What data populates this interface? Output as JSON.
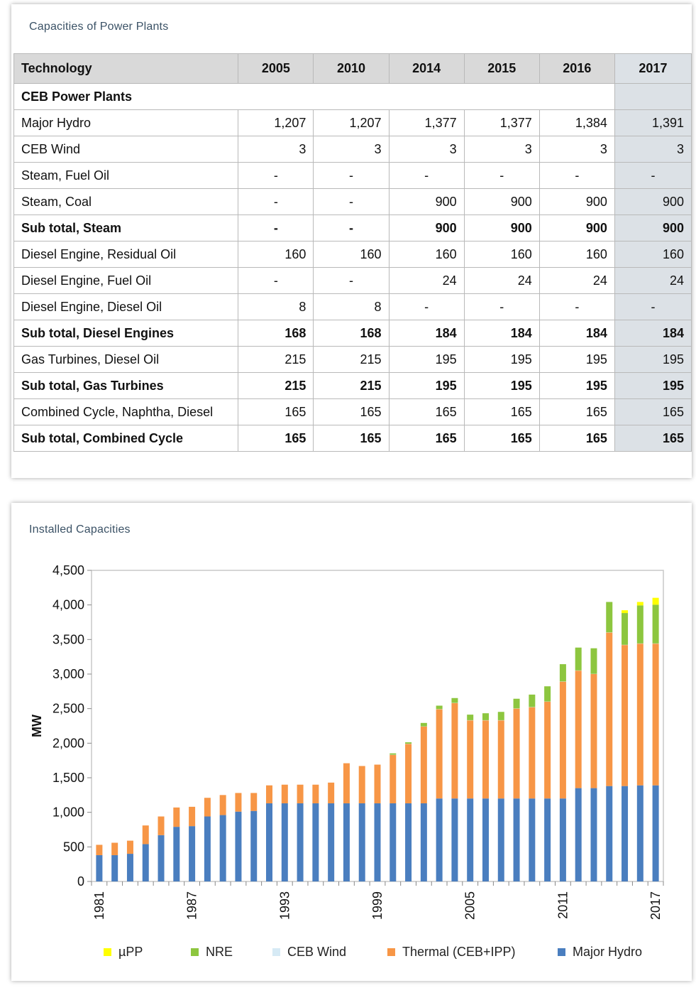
{
  "table_card": {
    "title": "Capacities of Power Plants",
    "headers": [
      "Technology",
      "2005",
      "2010",
      "2014",
      "2015",
      "2016",
      "2017"
    ],
    "group_label": "CEB Power Plants",
    "rows": [
      {
        "name": "Major Hydro",
        "bold": false,
        "values": [
          "1,207",
          "1,207",
          "1,377",
          "1,377",
          "1,384",
          "1,391"
        ]
      },
      {
        "name": "CEB Wind",
        "bold": false,
        "values": [
          "3",
          "3",
          "3",
          "3",
          "3",
          "3"
        ]
      },
      {
        "name": "Steam, Fuel Oil",
        "bold": false,
        "values": [
          "-",
          "-",
          "-",
          "-",
          "-",
          "-"
        ]
      },
      {
        "name": "Steam, Coal",
        "bold": false,
        "values": [
          "-",
          "-",
          "900",
          "900",
          "900",
          "900"
        ]
      },
      {
        "name": "Sub total, Steam",
        "bold": true,
        "values": [
          "-",
          "-",
          "900",
          "900",
          "900",
          "900"
        ]
      },
      {
        "name": "Diesel Engine, Residual Oil",
        "bold": false,
        "values": [
          "160",
          "160",
          "160",
          "160",
          "160",
          "160"
        ]
      },
      {
        "name": "Diesel Engine, Fuel Oil",
        "bold": false,
        "values": [
          "-",
          "-",
          "24",
          "24",
          "24",
          "24"
        ]
      },
      {
        "name": "Diesel Engine, Diesel Oil",
        "bold": false,
        "values": [
          "8",
          "8",
          "-",
          "-",
          "-",
          "-"
        ]
      },
      {
        "name": "Sub total, Diesel Engines",
        "bold": true,
        "values": [
          "168",
          "168",
          "184",
          "184",
          "184",
          "184"
        ]
      },
      {
        "name": "Gas Turbines, Diesel Oil",
        "bold": false,
        "values": [
          "215",
          "215",
          "195",
          "195",
          "195",
          "195"
        ]
      },
      {
        "name": "Sub total, Gas Turbines",
        "bold": true,
        "values": [
          "215",
          "215",
          "195",
          "195",
          "195",
          "195"
        ]
      },
      {
        "name": "Combined Cycle, Naphtha, Diesel",
        "bold": false,
        "values": [
          "165",
          "165",
          "165",
          "165",
          "165",
          "165"
        ]
      },
      {
        "name": "Sub total, Combined Cycle",
        "bold": true,
        "values": [
          "165",
          "165",
          "165",
          "165",
          "165",
          "165"
        ]
      }
    ]
  },
  "chart_card": {
    "title": "Installed Capacities"
  },
  "chart_data": {
    "type": "bar",
    "stacked": true,
    "ylabel": "MW",
    "ylim": [
      0,
      4500
    ],
    "yticks": [
      "0",
      "500",
      "1,000",
      "1,500",
      "2,000",
      "2,500",
      "3,000",
      "3,500",
      "4,000",
      "4,500"
    ],
    "ytick_values": [
      0,
      500,
      1000,
      1500,
      2000,
      2500,
      3000,
      3500,
      4000,
      4500
    ],
    "categories": [
      1981,
      1982,
      1983,
      1984,
      1985,
      1986,
      1987,
      1988,
      1989,
      1990,
      1991,
      1992,
      1993,
      1994,
      1995,
      1996,
      1997,
      1998,
      1999,
      2000,
      2001,
      2002,
      2003,
      2004,
      2005,
      2006,
      2007,
      2008,
      2009,
      2010,
      2011,
      2012,
      2013,
      2014,
      2015,
      2016,
      2017
    ],
    "xtick_labels": [
      "1981",
      "1987",
      "1993",
      "1999",
      "2005",
      "2011",
      "2017"
    ],
    "xtick_years": [
      1981,
      1987,
      1993,
      1999,
      2005,
      2011,
      2017
    ],
    "grid": false,
    "legend_position": "bottom",
    "series": [
      {
        "name": "Major Hydro",
        "color": "#4a7ebf",
        "values": [
          380,
          380,
          400,
          540,
          670,
          790,
          800,
          940,
          960,
          1010,
          1020,
          1130,
          1130,
          1130,
          1130,
          1130,
          1130,
          1130,
          1130,
          1130,
          1130,
          1130,
          1200,
          1200,
          1200,
          1200,
          1200,
          1200,
          1200,
          1200,
          1200,
          1350,
          1350,
          1380,
          1380,
          1390,
          1390
        ]
      },
      {
        "name": "Thermal (CEB+IPP)",
        "color": "#f79646",
        "values": [
          150,
          180,
          190,
          270,
          270,
          280,
          280,
          270,
          290,
          270,
          260,
          260,
          270,
          270,
          270,
          300,
          580,
          540,
          560,
          700,
          860,
          1110,
          1290,
          1380,
          1130,
          1130,
          1130,
          1300,
          1320,
          1400,
          1690,
          1700,
          1650,
          2220,
          2040,
          2050,
          2050
        ]
      },
      {
        "name": "CEB Wind",
        "color": "#d6eaf5",
        "values": [
          0,
          0,
          0,
          0,
          0,
          0,
          0,
          0,
          0,
          0,
          0,
          0,
          0,
          0,
          0,
          0,
          0,
          0,
          0,
          3,
          3,
          3,
          3,
          3,
          3,
          3,
          3,
          3,
          3,
          3,
          3,
          3,
          3,
          3,
          3,
          3,
          3
        ]
      },
      {
        "name": "NRE",
        "color": "#8dc63f",
        "values": [
          0,
          0,
          0,
          0,
          0,
          0,
          0,
          0,
          0,
          0,
          0,
          0,
          0,
          0,
          0,
          0,
          0,
          0,
          0,
          20,
          20,
          50,
          50,
          70,
          80,
          100,
          120,
          140,
          180,
          220,
          250,
          330,
          370,
          440,
          460,
          550,
          560
        ]
      },
      {
        "name": "µPP",
        "color": "#ffff00",
        "values": [
          0,
          0,
          0,
          0,
          0,
          0,
          0,
          0,
          0,
          0,
          0,
          0,
          0,
          0,
          0,
          0,
          0,
          0,
          0,
          0,
          0,
          0,
          0,
          0,
          0,
          0,
          0,
          0,
          0,
          0,
          0,
          0,
          0,
          0,
          40,
          50,
          100
        ]
      }
    ],
    "legend_order": [
      "µPP",
      "NRE",
      "CEB Wind",
      "Thermal (CEB+IPP)",
      "Major Hydro"
    ]
  }
}
